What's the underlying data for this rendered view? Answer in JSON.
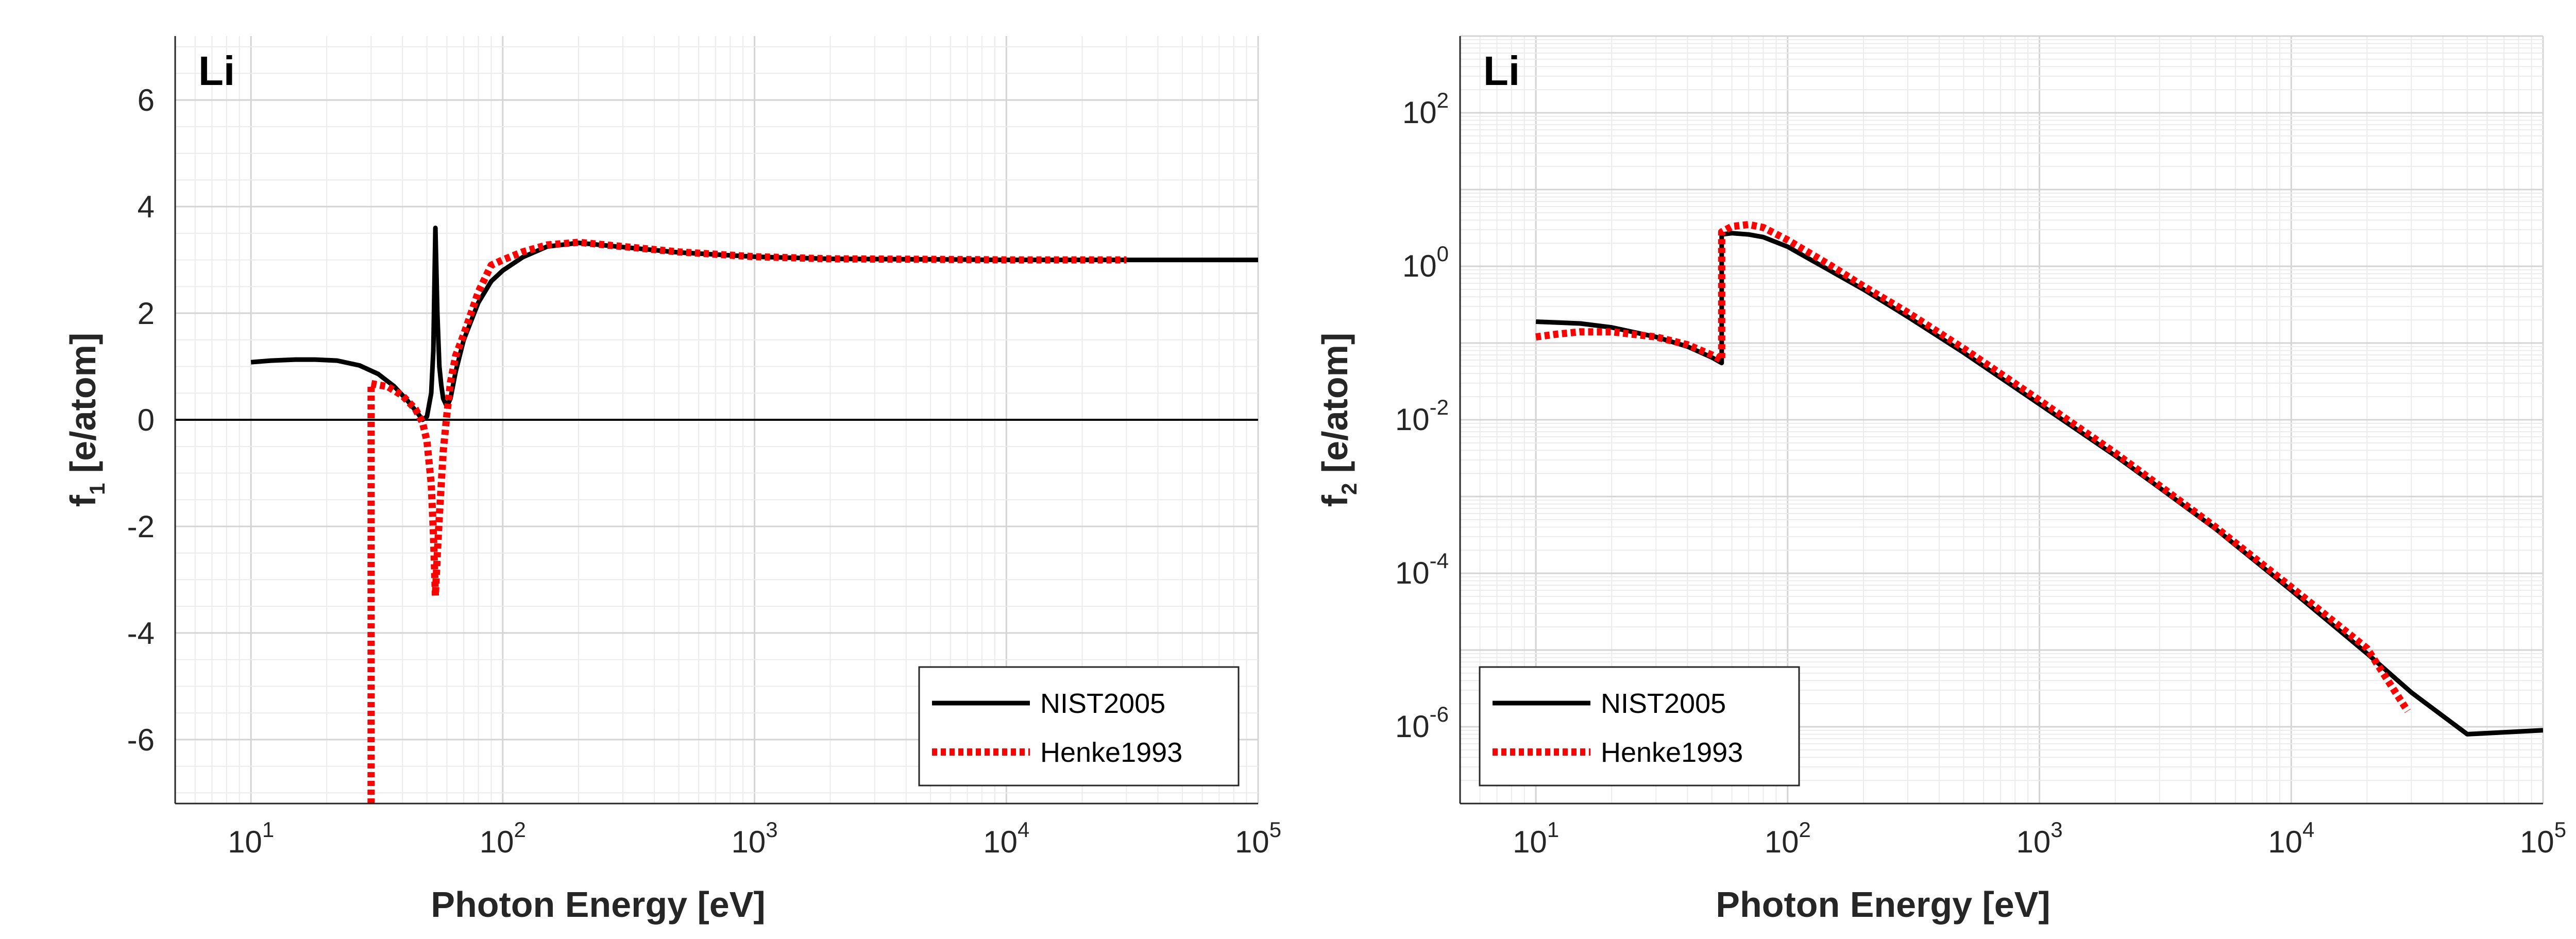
{
  "colors": {
    "nist": "#000000",
    "henke": "#ff0000",
    "grid_major": "#d4d4d4",
    "grid_minor": "#ebebeb",
    "axis": "#262626"
  },
  "chart_data": [
    {
      "type": "line",
      "title": "Li",
      "xlabel": "Photon Energy [eV]",
      "ylabel": "f",
      "ylabel_sub": "1",
      "ylabel_unit": " [e/atom]",
      "xscale": "log",
      "xlim": [
        5,
        100000
      ],
      "ylim": [
        -7.2,
        7.2
      ],
      "xticks": [
        {
          "value": 10,
          "base": "10",
          "exp": "1"
        },
        {
          "value": 100,
          "base": "10",
          "exp": "2"
        },
        {
          "value": 1000,
          "base": "10",
          "exp": "3"
        },
        {
          "value": 10000,
          "base": "10",
          "exp": "4"
        },
        {
          "value": 100000,
          "base": "10",
          "exp": "5"
        }
      ],
      "yticks": [
        {
          "value": 6,
          "label": "6"
        },
        {
          "value": 4,
          "label": "4"
        },
        {
          "value": 2,
          "label": "2"
        },
        {
          "value": 0,
          "label": "0"
        },
        {
          "value": -2,
          "label": "-2"
        },
        {
          "value": -4,
          "label": "-4"
        },
        {
          "value": -6,
          "label": "-6"
        }
      ],
      "zero_line": true,
      "grid": true,
      "legend_position": "bottom-right",
      "series": [
        {
          "name": "NIST2005",
          "style": "solid",
          "x": [
            10,
            12,
            15,
            18,
            22,
            27,
            32,
            37,
            42,
            46,
            48,
            50,
            52,
            53,
            54,
            55,
            56,
            57,
            58,
            60,
            62,
            65,
            70,
            80,
            90,
            100,
            120,
            150,
            200,
            300,
            500,
            1000,
            2000,
            5000,
            10000,
            30000,
            100000
          ],
          "y": [
            1.08,
            1.11,
            1.13,
            1.13,
            1.11,
            1.02,
            0.86,
            0.63,
            0.35,
            0.12,
            0.0,
            0.06,
            0.5,
            1.3,
            3.6,
            2.0,
            1.0,
            0.65,
            0.4,
            0.25,
            0.4,
            0.9,
            1.5,
            2.2,
            2.6,
            2.8,
            3.05,
            3.25,
            3.32,
            3.24,
            3.14,
            3.06,
            3.02,
            3.01,
            3.0,
            3.0,
            3.0
          ]
        },
        {
          "name": "Henke1993",
          "style": "dotted",
          "x": [
            30,
            30,
            35,
            40,
            45,
            48,
            50,
            52,
            53,
            54,
            55,
            56,
            57,
            58,
            60,
            62,
            65,
            70,
            80,
            90,
            100,
            120,
            150,
            200,
            300,
            500,
            1000,
            2000,
            5000,
            10000,
            30000
          ],
          "y": [
            -7.2,
            0.68,
            0.62,
            0.45,
            0.2,
            -0.05,
            -0.4,
            -1.2,
            -2.1,
            -3.3,
            -2.5,
            -1.8,
            -1.2,
            -0.6,
            0.1,
            0.7,
            1.2,
            1.6,
            2.4,
            2.9,
            3.0,
            3.15,
            3.28,
            3.33,
            3.25,
            3.15,
            3.06,
            3.02,
            3.01,
            3.0,
            3.0
          ]
        }
      ]
    },
    {
      "type": "line",
      "title": "Li",
      "xlabel": "Photon Energy [eV]",
      "ylabel": "f",
      "ylabel_sub": "2",
      "ylabel_unit": " [e/atom]",
      "xscale": "log",
      "yscale": "log",
      "xlim": [
        5,
        100000
      ],
      "ylim": [
        1e-07,
        1000
      ],
      "xticks": [
        {
          "value": 10,
          "base": "10",
          "exp": "1"
        },
        {
          "value": 100,
          "base": "10",
          "exp": "2"
        },
        {
          "value": 1000,
          "base": "10",
          "exp": "3"
        },
        {
          "value": 10000,
          "base": "10",
          "exp": "4"
        },
        {
          "value": 100000,
          "base": "10",
          "exp": "5"
        }
      ],
      "yticks": [
        {
          "value": 100,
          "base": "10",
          "exp": "2"
        },
        {
          "value": 1,
          "base": "10",
          "exp": "0"
        },
        {
          "value": 0.01,
          "base": "10",
          "exp": "-2"
        },
        {
          "value": 0.0001,
          "base": "10",
          "exp": "-4"
        },
        {
          "value": 1e-06,
          "base": "10",
          "exp": "-6"
        }
      ],
      "grid": true,
      "legend_position": "bottom-left",
      "series": [
        {
          "name": "NIST2005",
          "style": "solid",
          "x": [
            10,
            15,
            20,
            30,
            40,
            50,
            54.7,
            54.7,
            60,
            70,
            80,
            100,
            150,
            200,
            300,
            500,
            1000,
            2000,
            3000,
            5000,
            10000,
            20000,
            30000,
            50000,
            100000
          ],
          "y": [
            0.19,
            0.18,
            0.16,
            0.12,
            0.09,
            0.065,
            0.055,
            2.6,
            2.7,
            2.6,
            2.4,
            1.8,
            0.85,
            0.5,
            0.22,
            0.075,
            0.016,
            0.0034,
            0.0013,
            0.00038,
            6e-05,
            9e-06,
            2.8e-06,
            8e-07,
            9e-07
          ]
        },
        {
          "name": "Henke1993",
          "style": "dotted",
          "x": [
            10,
            12,
            15,
            20,
            30,
            40,
            50,
            54.7,
            54.7,
            60,
            70,
            80,
            100,
            150,
            200,
            300,
            500,
            1000,
            2000,
            5000,
            10000,
            20000,
            29000
          ],
          "y": [
            0.12,
            0.13,
            0.14,
            0.14,
            0.12,
            0.095,
            0.07,
            0.06,
            2.8,
            3.3,
            3.5,
            3.2,
            2.2,
            1.0,
            0.55,
            0.25,
            0.085,
            0.018,
            0.0037,
            0.0004,
            6.6e-05,
            1.05e-05,
            1.6e-06
          ]
        }
      ]
    }
  ]
}
